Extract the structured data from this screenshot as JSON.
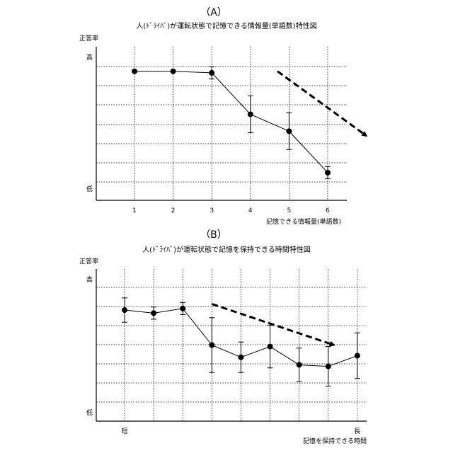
{
  "figure": {
    "panel_a_label": "（A）",
    "panel_b_label": "（B）"
  },
  "chart_data": [
    {
      "type": "line",
      "title": "人(ﾄﾞﾗｲﾊﾞ)が運転状態で記憶できる情報量(単語数)特性図",
      "ylabel": "正答率",
      "xlabel": "記憶できる情報量(単語数)",
      "y_high_label": "高",
      "y_low_label": "低",
      "categories": [
        "1",
        "2",
        "3",
        "4",
        "5",
        "6"
      ],
      "values": [
        0.84,
        0.84,
        0.83,
        0.56,
        0.45,
        0.18
      ],
      "errors": [
        0,
        0,
        0.04,
        0.12,
        0.12,
        0.04
      ],
      "trend_arrow": {
        "from": [
          3.7,
          0.84
        ],
        "to": [
          6.0,
          0.42
        ]
      },
      "ylim": [
        0,
        1
      ],
      "grid": true,
      "grid_style": "dotted"
    },
    {
      "type": "line",
      "title": "人(ﾄﾞﾗｲﾊﾞ)が運転状態で記憶を保持できる時間特性図",
      "ylabel": "正答率",
      "xlabel": "記憶を保持できる時間",
      "y_high_label": "高",
      "y_low_label": "低",
      "x_tick_labels": [
        "短",
        "",
        "",
        "",
        "",
        "",
        "",
        "",
        "長"
      ],
      "values": [
        0.73,
        0.71,
        0.74,
        0.5,
        0.42,
        0.49,
        0.37,
        0.36,
        0.43
      ],
      "errors": [
        0.08,
        0.04,
        0.04,
        0.18,
        0.1,
        0.14,
        0.11,
        0.13,
        0.15
      ],
      "trend_arrow": {
        "from": [
          3.0,
          0.77
        ],
        "to": [
          7.2,
          0.5
        ]
      },
      "ylim": [
        0,
        1
      ],
      "grid": true,
      "grid_style": "dotted"
    }
  ]
}
